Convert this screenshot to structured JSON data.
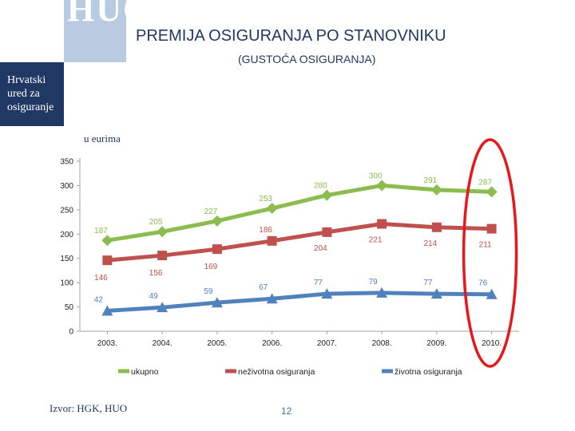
{
  "header": {
    "logo_text": "HUO",
    "org_name": [
      "Hrvatski",
      "ured za",
      "osiguranje"
    ],
    "title": "PREMIJA OSIGURANJA PO STANOVNIKU",
    "subtitle": "(GUSTOĆA OSIGURANJA)"
  },
  "footer": {
    "source": "Izvor: HGK, HUO",
    "page_number": "12"
  },
  "colors": {
    "ukupno": "#8cbb4f",
    "nezivotna": "#c0504d",
    "zivotna": "#4f81bd",
    "highlight": "#e8171c",
    "text": "#1f3864"
  },
  "chart_data": {
    "type": "line",
    "unit_label": "u eurima",
    "categories": [
      "2003.",
      "2004.",
      "2005.",
      "2006.",
      "2007.",
      "2008.",
      "2009.",
      "2010."
    ],
    "y_ticks": [
      "0",
      "50",
      "100",
      "150",
      "200",
      "250",
      "300",
      "350"
    ],
    "ylim": [
      0,
      350
    ],
    "grid": false,
    "legend_position": "bottom",
    "series": [
      {
        "name": "ukupno",
        "marker": "diamond",
        "values": [
          187,
          205,
          227,
          253,
          280,
          300,
          291,
          287
        ]
      },
      {
        "name": "neživotna osiguranja",
        "marker": "square",
        "values": [
          146,
          156,
          169,
          186,
          204,
          221,
          214,
          211
        ]
      },
      {
        "name": "životna osiguranja",
        "marker": "triangle",
        "values": [
          42,
          49,
          59,
          67,
          77,
          79,
          77,
          76
        ]
      }
    ],
    "highlight": "2010."
  }
}
